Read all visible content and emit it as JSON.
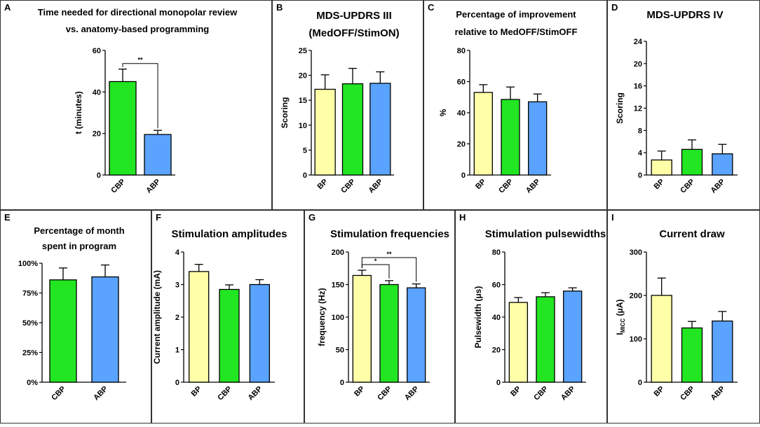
{
  "colors": {
    "BP": "#ffffa8",
    "CBP": "#22e622",
    "ABP": "#5aa3ff",
    "border": "#333333"
  },
  "chart_data": [
    {
      "panel": "A",
      "type": "bar",
      "title": [
        "Time needed for directional monopolar review",
        "vs. anatomy-based programming"
      ],
      "categories": [
        "CBP",
        "ABP"
      ],
      "values": [
        45,
        19.5
      ],
      "errors": [
        6,
        2
      ],
      "ylabel": "t (minutes)",
      "ylim": [
        0,
        60
      ],
      "yticks": [
        "0",
        "20",
        "40",
        "60"
      ],
      "annotations": [
        {
          "from": "CBP",
          "to": "ABP",
          "text": "**"
        }
      ]
    },
    {
      "panel": "B",
      "type": "bar",
      "title": [
        "MDS-UPDRS III",
        "(MedOFF/StimON)"
      ],
      "categories": [
        "BP",
        "CBP",
        "ABP"
      ],
      "values": [
        17.2,
        18.3,
        18.4
      ],
      "errors": [
        2.9,
        3.1,
        2.3
      ],
      "ylabel": "Scoring",
      "ylim": [
        0,
        25
      ],
      "yticks": [
        "0",
        "5",
        "10",
        "15",
        "20",
        "25"
      ]
    },
    {
      "panel": "C",
      "type": "bar",
      "title": [
        "Percentage of improvement",
        "relative to MedOFF/StimOFF"
      ],
      "categories": [
        "BP",
        "CBP",
        "ABP"
      ],
      "values": [
        53,
        48.5,
        47
      ],
      "errors": [
        5,
        8,
        5
      ],
      "ylabel": "%",
      "ylim": [
        0,
        80
      ],
      "yticks": [
        "0",
        "20",
        "40",
        "60",
        "80"
      ]
    },
    {
      "panel": "D",
      "type": "bar",
      "title": [
        "MDS-UPDRS IV"
      ],
      "categories": [
        "BP",
        "CBP",
        "ABP"
      ],
      "values": [
        2.7,
        4.6,
        3.8
      ],
      "errors": [
        1.6,
        1.7,
        1.7
      ],
      "ylabel": "Scoring",
      "ylim": [
        0,
        24
      ],
      "yticks": [
        "0",
        "4",
        "8",
        "12",
        "16",
        "20",
        "24"
      ]
    },
    {
      "panel": "E",
      "type": "bar",
      "title": [
        "Percentage of month",
        "spent in program"
      ],
      "categories": [
        "CBP",
        "ABP"
      ],
      "values": [
        86,
        88.5
      ],
      "errors": [
        10,
        10
      ],
      "ylabel": "",
      "ylim": [
        0,
        100
      ],
      "yticks": [
        "0%",
        "25%",
        "50%",
        "75%",
        "100%"
      ]
    },
    {
      "panel": "F",
      "type": "bar",
      "title": [
        "Stimulation amplitudes"
      ],
      "categories": [
        "BP",
        "CBP",
        "ABP"
      ],
      "values": [
        3.4,
        2.85,
        3.0
      ],
      "errors": [
        0.22,
        0.14,
        0.15
      ],
      "ylabel": "Current amplitude (mA)",
      "ylim": [
        0,
        4
      ],
      "yticks": [
        "0",
        "1",
        "2",
        "3",
        "4"
      ]
    },
    {
      "panel": "G",
      "type": "bar",
      "title": [
        "Stimulation frequencies"
      ],
      "categories": [
        "BP",
        "CBP",
        "ABP"
      ],
      "values": [
        164,
        150,
        145
      ],
      "errors": [
        8,
        6,
        6
      ],
      "ylabel": "frequency (Hz)",
      "ylim": [
        0,
        200
      ],
      "yticks": [
        "0",
        "50",
        "100",
        "150",
        "200"
      ],
      "annotations": [
        {
          "from": "BP",
          "to": "CBP",
          "text": "*"
        },
        {
          "from": "BP",
          "to": "ABP",
          "text": "**"
        }
      ]
    },
    {
      "panel": "H",
      "type": "bar",
      "title": [
        "Stimulation pulsewidths"
      ],
      "categories": [
        "BP",
        "CBP",
        "ABP"
      ],
      "values": [
        49,
        52.5,
        56
      ],
      "errors": [
        3,
        2.5,
        2
      ],
      "ylabel": "Pulsewidth (μs)",
      "ylim": [
        0,
        80
      ],
      "yticks": [
        "0",
        "20",
        "40",
        "60",
        "80"
      ]
    },
    {
      "panel": "I",
      "type": "bar",
      "title": [
        "Current draw"
      ],
      "categories": [
        "BP",
        "CBP",
        "ABP"
      ],
      "values": [
        200,
        125,
        141
      ],
      "errors": [
        40,
        15,
        22
      ],
      "ylabel": "I",
      "ylabel_subscript": "MICC",
      "ylabel_suffix": " (μA)",
      "ylim": [
        0,
        300
      ],
      "yticks": [
        "0",
        "100",
        "200",
        "300"
      ]
    }
  ]
}
